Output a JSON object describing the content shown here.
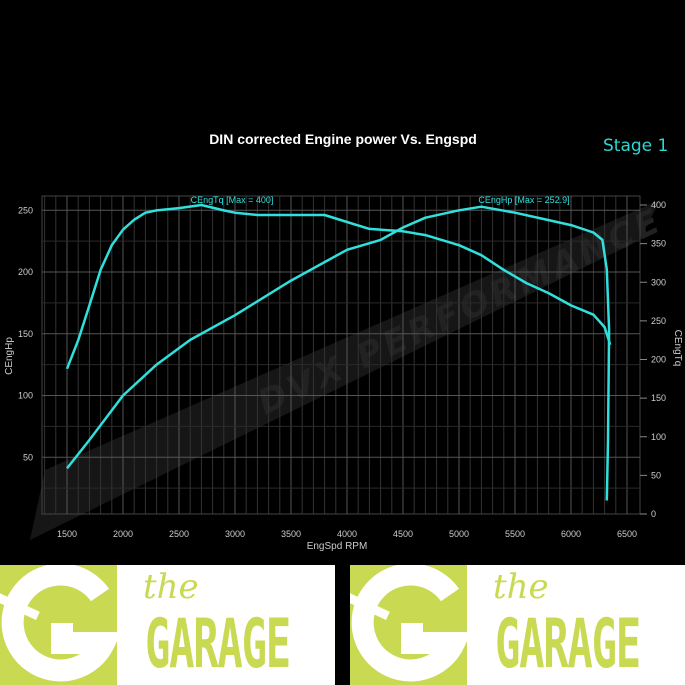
{
  "stage_label": "Stage 1",
  "watermark": "DVX PERFORMANCE",
  "logo": {
    "the": "the",
    "garage": "GARAGE",
    "colors": {
      "brand": "#c9d951"
    }
  },
  "chart_data": {
    "type": "line",
    "title": "DIN corrected Engine power Vs. Engspd",
    "xlabel": "EngSpd RPM",
    "ylabel_left": "CEngHp",
    "ylabel_right": "CEngTq",
    "xlim": [
      1250,
      6600
    ],
    "ylim_left": [
      0,
      260
    ],
    "ylim_right": [
      0,
      410
    ],
    "xticks": [
      1500,
      2000,
      2500,
      3000,
      3500,
      4000,
      4500,
      5000,
      5500,
      6000,
      6500
    ],
    "yticks_left": [
      50,
      100,
      150,
      200,
      250
    ],
    "yticks_right": [
      0,
      50,
      100,
      150,
      200,
      250,
      300,
      350,
      400
    ],
    "grid": true,
    "line_color": "#2fe0dc",
    "series": [
      {
        "name": "CEngTq [Max = 400]",
        "axis": "right",
        "x": [
          1500,
          1600,
          1700,
          1800,
          1900,
          2000,
          2100,
          2200,
          2300,
          2500,
          2700,
          2900,
          3000,
          3200,
          3500,
          3800,
          4000,
          4200,
          4500,
          4700,
          5000,
          5200,
          5400,
          5600,
          5800,
          6000,
          6200,
          6300,
          6350
        ],
        "y": [
          188,
          225,
          270,
          316,
          348,
          368,
          381,
          390,
          393,
          396,
          400,
          393,
          390,
          387,
          387,
          387,
          378,
          369,
          366,
          361,
          348,
          335,
          316,
          299,
          286,
          270,
          258,
          242,
          219
        ]
      },
      {
        "name": "CEngHp [Max = 252.9]",
        "axis": "left",
        "x": [
          1500,
          1700,
          2000,
          2300,
          2600,
          3000,
          3500,
          4000,
          4300,
          4500,
          4700,
          5000,
          5200,
          5500,
          5800,
          6000,
          6200,
          6280,
          6320,
          6340,
          6330,
          6320
        ],
        "y": [
          41,
          64,
          100,
          125,
          145,
          165,
          193,
          218,
          226,
          236,
          244,
          250,
          252.9,
          248,
          242,
          238,
          232,
          226,
          202,
          153,
          64,
          15
        ]
      }
    ]
  }
}
